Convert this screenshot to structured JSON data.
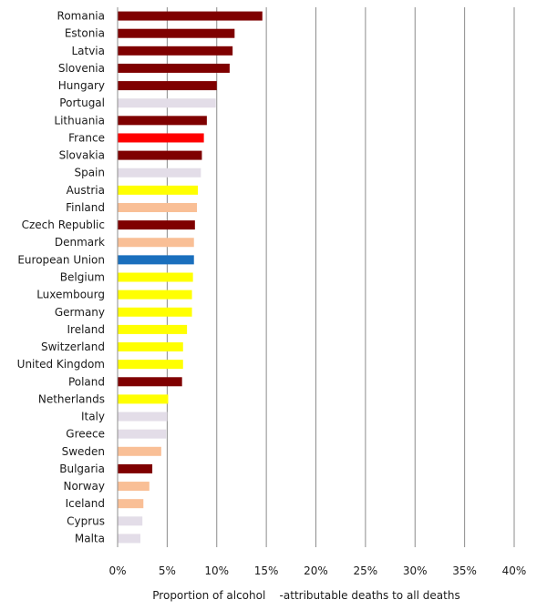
{
  "chart_data": {
    "type": "bar",
    "orientation": "horizontal",
    "title": "",
    "xlabel": "Proportion of alcohol    -attributable deaths to all deaths",
    "ylabel": "",
    "xlim": [
      0,
      40
    ],
    "x_ticks": [
      "0%",
      "5%",
      "10%",
      "15%",
      "20%",
      "25%",
      "30%",
      "35%",
      "40%"
    ],
    "grid": "vertical",
    "legend": "none",
    "colors": {
      "dark_red": "#7f0000",
      "gray": "#e3dde8",
      "red": "#ff0000",
      "yellow": "#ffff00",
      "peach": "#f9bf96",
      "blue": "#1a6fbd"
    },
    "bars": [
      {
        "category": "Romania",
        "value": 14.6,
        "color": "dark_red"
      },
      {
        "category": "Estonia",
        "value": 11.8,
        "color": "dark_red"
      },
      {
        "category": "Latvia",
        "value": 11.6,
        "color": "dark_red"
      },
      {
        "category": "Slovenia",
        "value": 11.3,
        "color": "dark_red"
      },
      {
        "category": "Hungary",
        "value": 10.0,
        "color": "dark_red"
      },
      {
        "category": "Portugal",
        "value": 9.9,
        "color": "gray"
      },
      {
        "category": "Lithuania",
        "value": 9.0,
        "color": "dark_red"
      },
      {
        "category": "France",
        "value": 8.7,
        "color": "red"
      },
      {
        "category": "Slovakia",
        "value": 8.5,
        "color": "dark_red"
      },
      {
        "category": "Spain",
        "value": 8.4,
        "color": "gray"
      },
      {
        "category": "Austria",
        "value": 8.1,
        "color": "yellow"
      },
      {
        "category": "Finland",
        "value": 8.0,
        "color": "peach"
      },
      {
        "category": "Czech Republic",
        "value": 7.8,
        "color": "dark_red"
      },
      {
        "category": "Denmark",
        "value": 7.7,
        "color": "peach"
      },
      {
        "category": "European Union",
        "value": 7.7,
        "color": "blue"
      },
      {
        "category": "Belgium",
        "value": 7.6,
        "color": "yellow"
      },
      {
        "category": "Luxembourg",
        "value": 7.5,
        "color": "yellow"
      },
      {
        "category": "Germany",
        "value": 7.5,
        "color": "yellow"
      },
      {
        "category": "Ireland",
        "value": 7.0,
        "color": "yellow"
      },
      {
        "category": "Switzerland",
        "value": 6.6,
        "color": "yellow"
      },
      {
        "category": "United Kingdom",
        "value": 6.6,
        "color": "yellow"
      },
      {
        "category": "Poland",
        "value": 6.5,
        "color": "dark_red"
      },
      {
        "category": "Netherlands",
        "value": 5.1,
        "color": "yellow"
      },
      {
        "category": "Italy",
        "value": 5.0,
        "color": "gray"
      },
      {
        "category": "Greece",
        "value": 4.9,
        "color": "gray"
      },
      {
        "category": "Sweden",
        "value": 4.4,
        "color": "peach"
      },
      {
        "category": "Bulgaria",
        "value": 3.5,
        "color": "dark_red"
      },
      {
        "category": "Norway",
        "value": 3.2,
        "color": "peach"
      },
      {
        "category": "Iceland",
        "value": 2.6,
        "color": "peach"
      },
      {
        "category": "Cyprus",
        "value": 2.5,
        "color": "gray"
      },
      {
        "category": "Malta",
        "value": 2.3,
        "color": "gray"
      }
    ]
  }
}
